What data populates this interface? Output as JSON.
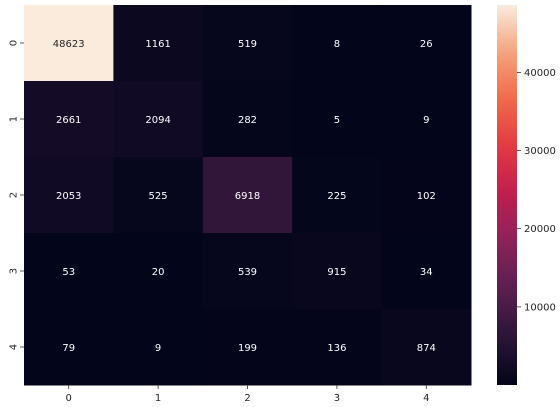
{
  "chart_data": {
    "type": "heatmap",
    "title": "",
    "xlabel": "",
    "ylabel": "",
    "x_categories": [
      "0",
      "1",
      "2",
      "3",
      "4"
    ],
    "y_categories": [
      "0",
      "1",
      "2",
      "3",
      "4"
    ],
    "values": [
      [
        48623,
        1161,
        519,
        8,
        26
      ],
      [
        2661,
        2094,
        282,
        5,
        9
      ],
      [
        2053,
        525,
        6918,
        225,
        102
      ],
      [
        53,
        20,
        539,
        915,
        34
      ],
      [
        79,
        9,
        199,
        136,
        874
      ]
    ],
    "colorbar": {
      "min": 5,
      "max": 48623,
      "ticks": [
        10000,
        20000,
        30000,
        40000
      ],
      "tick_labels": [
        "10000",
        "20000",
        "30000",
        "40000"
      ],
      "colormap": "rocket"
    },
    "grid": false,
    "legend": "colorbar-right"
  }
}
